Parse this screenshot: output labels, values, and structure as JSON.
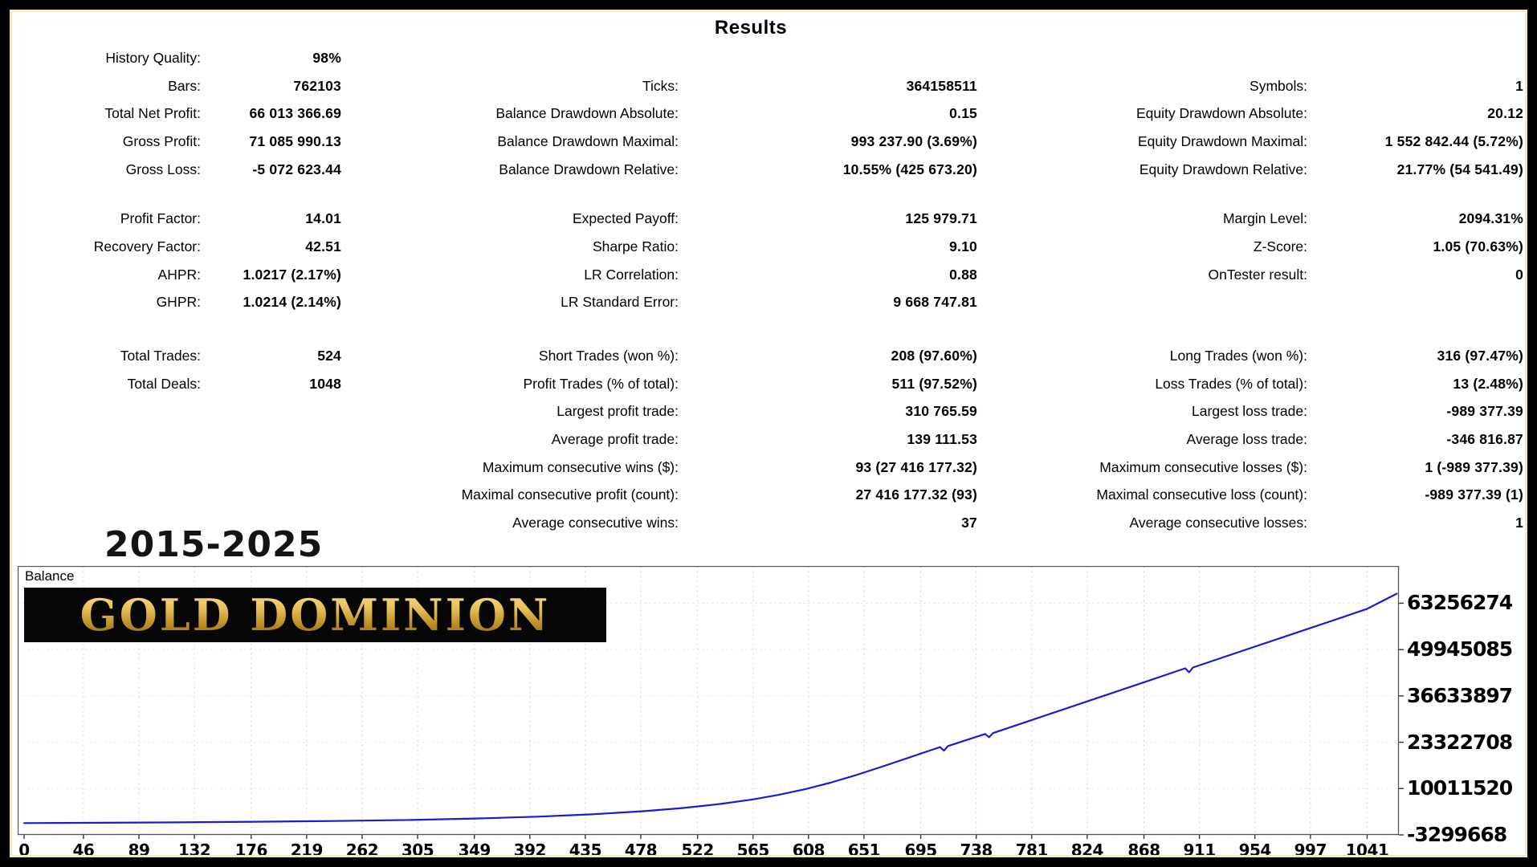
{
  "title": "Results",
  "results": {
    "sections": [
      {
        "rows": [
          [
            "History Quality:",
            "98%",
            "",
            "",
            "",
            ""
          ],
          [
            "Bars:",
            "762103",
            "Ticks:",
            "364158511",
            "Symbols:",
            "1"
          ],
          [
            "Total Net Profit:",
            "66 013 366.69",
            "Balance Drawdown Absolute:",
            "0.15",
            "Equity Drawdown Absolute:",
            "20.12"
          ],
          [
            "Gross Profit:",
            "71 085 990.13",
            "Balance Drawdown Maximal:",
            "993 237.90 (3.69%)",
            "Equity Drawdown Maximal:",
            "1 552 842.44 (5.72%)"
          ],
          [
            "Gross Loss:",
            "-5 072 623.44",
            "Balance Drawdown Relative:",
            "10.55% (425 673.20)",
            "Equity Drawdown Relative:",
            "21.77% (54 541.49)"
          ]
        ]
      },
      {
        "rows": [
          [
            "Profit Factor:",
            "14.01",
            "Expected Payoff:",
            "125 979.71",
            "Margin Level:",
            "2094.31%"
          ],
          [
            "Recovery Factor:",
            "42.51",
            "Sharpe Ratio:",
            "9.10",
            "Z-Score:",
            "1.05 (70.63%)"
          ],
          [
            "AHPR:",
            "1.0217 (2.17%)",
            "LR Correlation:",
            "0.88",
            "OnTester result:",
            "0"
          ],
          [
            "GHPR:",
            "1.0214 (2.14%)",
            "LR Standard Error:",
            "9 668 747.81",
            "",
            ""
          ]
        ]
      },
      {
        "rows": [
          [
            "Total Trades:",
            "524",
            "Short Trades (won %):",
            "208 (97.60%)",
            "Long Trades (won %):",
            "316 (97.47%)"
          ],
          [
            "Total Deals:",
            "1048",
            "Profit Trades (% of total):",
            "511 (97.52%)",
            "Loss Trades (% of total):",
            "13 (2.48%)"
          ],
          [
            "",
            "",
            "Largest profit trade:",
            "310 765.59",
            "Largest loss trade:",
            "-989 377.39"
          ],
          [
            "",
            "",
            "Average profit trade:",
            "139 111.53",
            "Average loss trade:",
            "-346 816.87"
          ],
          [
            "",
            "",
            "Maximum consecutive wins ($):",
            "93 (27 416 177.32)",
            "Maximum consecutive losses ($):",
            "1 (-989 377.39)"
          ],
          [
            "",
            "",
            "Maximal consecutive profit (count):",
            "27 416 177.32 (93)",
            "Maximal consecutive loss (count):",
            "-989 377.39 (1)"
          ],
          [
            "",
            "",
            "Average consecutive wins:",
            "37",
            "Average consecutive losses:",
            "1"
          ]
        ]
      }
    ]
  },
  "overlay": {
    "years": "2015-2025",
    "brand": "GOLD DOMINION"
  },
  "colors": {
    "balance_line": "#1b1bd0",
    "banner_bg": "#070707",
    "gold_accent": "#d4a43a",
    "frame_inner": "#f0e9c4"
  },
  "chart_data": {
    "type": "line",
    "title": "Balance",
    "xlabel": "",
    "ylabel": "",
    "legend_position": "top-left",
    "grid": "dashed",
    "x_ticks": [
      0,
      46,
      89,
      132,
      176,
      219,
      262,
      305,
      349,
      392,
      435,
      478,
      522,
      565,
      608,
      651,
      695,
      738,
      781,
      824,
      868,
      911,
      954,
      997,
      1041
    ],
    "y_ticks": [
      63256274,
      49945085,
      36633897,
      23322708,
      10011520,
      -3299668
    ],
    "x_plot_range": [
      0,
      1065
    ],
    "y_plot_range": [
      -3299668,
      73970000
    ],
    "series": [
      {
        "name": "Balance",
        "color": "#1b1bd0",
        "points": [
          [
            0,
            100000
          ],
          [
            60,
            180000
          ],
          [
            120,
            300000
          ],
          [
            180,
            480000
          ],
          [
            240,
            700000
          ],
          [
            300,
            1000000
          ],
          [
            350,
            1400000
          ],
          [
            400,
            1950000
          ],
          [
            440,
            2600000
          ],
          [
            480,
            3500000
          ],
          [
            510,
            4400000
          ],
          [
            540,
            5600000
          ],
          [
            565,
            6900000
          ],
          [
            585,
            8200000
          ],
          [
            605,
            9800000
          ],
          [
            625,
            11700000
          ],
          [
            645,
            13900000
          ],
          [
            665,
            16300000
          ],
          [
            685,
            18800000
          ],
          [
            700,
            20700000
          ],
          [
            710,
            21900000
          ],
          [
            713,
            20900000
          ],
          [
            716,
            22200000
          ],
          [
            730,
            23900000
          ],
          [
            745,
            25700000
          ],
          [
            748,
            24750000
          ],
          [
            751,
            25950000
          ],
          [
            781,
            29700000
          ],
          [
            810,
            33300000
          ],
          [
            840,
            37050000
          ],
          [
            868,
            40550000
          ],
          [
            900,
            44550000
          ],
          [
            903,
            43400000
          ],
          [
            906,
            44800000
          ],
          [
            930,
            47800000
          ],
          [
            954,
            50800000
          ],
          [
            975,
            53400000
          ],
          [
            997,
            56150000
          ],
          [
            1020,
            59000000
          ],
          [
            1041,
            61650000
          ],
          [
            1064,
            66013367
          ]
        ]
      }
    ]
  }
}
